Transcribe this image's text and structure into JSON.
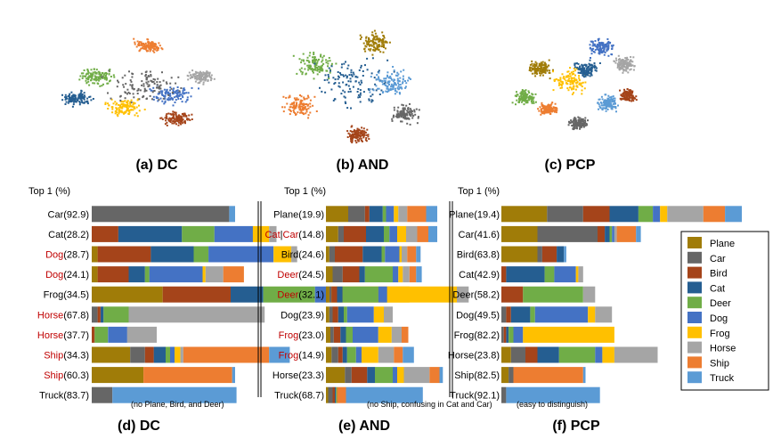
{
  "colors": {
    "Plane": "#a07c08",
    "Car": "#666666",
    "Bird": "#a5441a",
    "Cat": "#255e91",
    "Deer": "#70ad47",
    "Dog": "#4472c4",
    "Frog": "#ffc000",
    "Horse": "#a5a5a5",
    "Ship": "#ed7d31",
    "Truck": "#5b9bd5",
    "highlight_text": "#c00000"
  },
  "legend": [
    "Plane",
    "Car",
    "Bird",
    "Cat",
    "Deer",
    "Dog",
    "Frog",
    "Horse",
    "Ship",
    "Truck"
  ],
  "scatter_captions": [
    "(a) DC",
    "(b) AND",
    "(c) PCP"
  ],
  "chart_data": [
    {
      "type": "bar",
      "stacked": true,
      "orientation": "horizontal",
      "title": "(d) DC",
      "axis_header": "Top 1 (%)",
      "note": "(no Plane, Bird, and Deer)",
      "series_order": [
        "Plane",
        "Car",
        "Bird",
        "Cat",
        "Deer",
        "Dog",
        "Frog",
        "Horse",
        "Ship",
        "Truck"
      ],
      "xlim": [
        0,
        100
      ],
      "rows": [
        {
          "class": "Car",
          "top1": "92.9",
          "highlight": false,
          "values": [
            0,
            93,
            0,
            0,
            0,
            0,
            0,
            0,
            0,
            4
          ]
        },
        {
          "class": "Cat",
          "top1": "28.2",
          "highlight": false,
          "values": [
            0,
            0,
            18,
            43,
            22,
            26,
            11,
            5,
            0,
            0
          ]
        },
        {
          "class": "Dog",
          "top1": "28.7",
          "highlight": true,
          "values": [
            4,
            0,
            36,
            29,
            10,
            44,
            12,
            4,
            0,
            0
          ]
        },
        {
          "class": "Dog",
          "top1": "24.1",
          "highlight": true,
          "values": [
            4,
            0,
            21,
            11,
            3,
            36,
            2,
            12,
            14,
            0
          ]
        },
        {
          "class": "Frog",
          "top1": "34.5",
          "highlight": false,
          "values": [
            48,
            0,
            46,
            22,
            35,
            9,
            87,
            8,
            0,
            0
          ]
        },
        {
          "class": "Horse",
          "top1": "67.8",
          "highlight": true,
          "values": [
            0,
            4,
            2,
            2,
            17,
            0,
            0,
            92,
            0,
            0
          ]
        },
        {
          "class": "Horse",
          "top1": "37.7",
          "highlight": true,
          "values": [
            0,
            0,
            2,
            0,
            9,
            13,
            0,
            20,
            0,
            0
          ]
        },
        {
          "class": "Ship",
          "top1": "34.3",
          "highlight": true,
          "values": [
            26,
            10,
            6,
            8,
            3,
            3,
            4,
            2,
            58,
            14
          ]
        },
        {
          "class": "Ship",
          "top1": "60.3",
          "highlight": true,
          "values": [
            35,
            0,
            0,
            0,
            0,
            0,
            0,
            0,
            60,
            2
          ]
        },
        {
          "class": "Truck",
          "top1": "83.7",
          "highlight": false,
          "values": [
            0,
            14,
            0,
            0,
            0,
            0,
            0,
            0,
            0,
            84
          ]
        }
      ]
    },
    {
      "type": "bar",
      "stacked": true,
      "orientation": "horizontal",
      "title": "(e) AND",
      "axis_header": "Top 1 (%)",
      "note": "(no Ship, confusing in Cat and Car)",
      "series_order": [
        "Plane",
        "Car",
        "Bird",
        "Cat",
        "Deer",
        "Dog",
        "Frog",
        "Horse",
        "Ship",
        "Truck"
      ],
      "xlim": [
        0,
        100
      ],
      "rows": [
        {
          "class": "Plane",
          "top1": "19.9",
          "highlight": false,
          "values": [
            20,
            15,
            4,
            12,
            3,
            7,
            4,
            8,
            17,
            10
          ]
        },
        {
          "class": "Cat|Car",
          "top1": "14.8",
          "highlight": true,
          "split_label": true,
          "values": [
            11,
            5,
            20,
            16,
            5,
            7,
            8,
            10,
            10,
            8
          ]
        },
        {
          "class": "Bird",
          "top1": "24.6",
          "highlight": false,
          "values": [
            3,
            5,
            25,
            17,
            3,
            13,
            2,
            5,
            8,
            4
          ]
        },
        {
          "class": "Deer",
          "top1": "24.5",
          "highlight": true,
          "values": [
            6,
            9,
            15,
            5,
            25,
            5,
            4,
            6,
            6,
            5
          ]
        },
        {
          "class": "Deer",
          "top1": "32.1",
          "highlight": true,
          "values": [
            3,
            2,
            5,
            5,
            32,
            8,
            20,
            0,
            0,
            0
          ]
        },
        {
          "class": "Dog",
          "top1": "23.9",
          "highlight": false,
          "values": [
            3,
            3,
            5,
            5,
            3,
            24,
            9,
            8,
            0,
            0
          ]
        },
        {
          "class": "Frog",
          "top1": "23.0",
          "highlight": true,
          "values": [
            4,
            3,
            6,
            5,
            6,
            23,
            12,
            9,
            6,
            0
          ]
        },
        {
          "class": "Frog",
          "top1": "14.9",
          "highlight": true,
          "values": [
            5,
            6,
            4,
            4,
            8,
            5,
            15,
            14,
            8,
            10
          ]
        },
        {
          "class": "Horse",
          "top1": "23.3",
          "highlight": false,
          "values": [
            17,
            6,
            14,
            7,
            16,
            4,
            6,
            23,
            9,
            3
          ]
        },
        {
          "class": "Truck",
          "top1": "68.7",
          "highlight": false,
          "values": [
            2,
            4,
            2,
            1,
            1,
            0,
            0,
            0,
            8,
            69
          ]
        }
      ]
    },
    {
      "type": "bar",
      "stacked": true,
      "orientation": "horizontal",
      "title": "(f) PCP",
      "axis_header": "Top 1 (%)",
      "note": "(easy to distinguish)",
      "series_order": [
        "Plane",
        "Car",
        "Bird",
        "Cat",
        "Deer",
        "Dog",
        "Frog",
        "Horse",
        "Ship",
        "Truck"
      ],
      "xlim": [
        0,
        100
      ],
      "rows": [
        {
          "class": "Plane",
          "top1": "19.4",
          "highlight": false,
          "values": [
            19,
            15,
            11,
            12,
            6,
            3,
            3,
            15,
            9,
            7
          ]
        },
        {
          "class": "Car",
          "top1": "41.6",
          "highlight": false,
          "values": [
            15,
            25,
            3,
            2,
            1,
            1,
            0,
            1,
            8,
            2
          ]
        },
        {
          "class": "Bird",
          "top1": "63.8",
          "highlight": false,
          "values": [
            15,
            2,
            6,
            3,
            0,
            0,
            0,
            0,
            0,
            1
          ]
        },
        {
          "class": "Cat",
          "top1": "42.9",
          "highlight": false,
          "values": [
            0,
            0,
            2,
            16,
            4,
            9,
            1,
            2,
            0,
            0
          ]
        },
        {
          "class": "Deer",
          "top1": "58.2",
          "highlight": false,
          "values": [
            0,
            0,
            9,
            0,
            25,
            0,
            0,
            5,
            0,
            0
          ]
        },
        {
          "class": "Dog",
          "top1": "49.5",
          "highlight": false,
          "values": [
            0,
            2,
            2,
            8,
            2,
            22,
            3,
            7,
            0,
            0
          ]
        },
        {
          "class": "Frog",
          "top1": "82.2",
          "highlight": false,
          "values": [
            0,
            1,
            1,
            1,
            2,
            4,
            38,
            0,
            0,
            0
          ]
        },
        {
          "class": "Horse",
          "top1": "23.8",
          "highlight": false,
          "values": [
            4,
            6,
            5,
            9,
            15,
            3,
            5,
            18,
            0,
            0
          ]
        },
        {
          "class": "Ship",
          "top1": "82.5",
          "highlight": false,
          "values": [
            3,
            2,
            0,
            0,
            0,
            0,
            0,
            0,
            29,
            1
          ]
        },
        {
          "class": "Truck",
          "top1": "92.1",
          "highlight": false,
          "values": [
            0,
            2,
            0,
            0,
            0,
            0,
            0,
            0,
            0,
            39
          ]
        }
      ]
    }
  ]
}
